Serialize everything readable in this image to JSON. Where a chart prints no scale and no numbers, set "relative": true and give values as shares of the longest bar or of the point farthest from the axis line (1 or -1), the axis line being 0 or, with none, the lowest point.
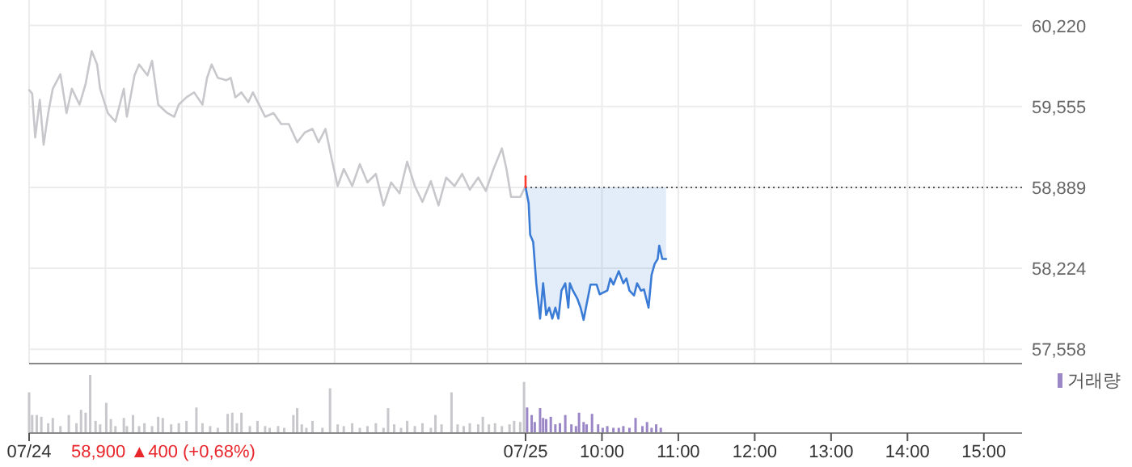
{
  "chart_data": [
    {
      "type": "line",
      "tick_labels": "y",
      "grid": true,
      "xlim": [
        2.5,
        15.5
      ],
      "xticks": [
        2.5,
        3.5,
        4.5,
        5.5,
        6.5,
        7.5,
        8.5,
        9,
        10,
        11,
        12,
        13,
        14,
        15
      ],
      "ylim": [
        57440,
        60430
      ],
      "yticks": [
        {
          "value": 57558,
          "label": "57,558"
        },
        {
          "value": 58224,
          "label": "58,224"
        },
        {
          "value": 58889,
          "label": "58,889"
        },
        {
          "value": 59555,
          "label": "59,555"
        },
        {
          "value": 60220,
          "label": "60,220"
        }
      ],
      "ref_lines": [
        {
          "axis": "y",
          "value": 58889,
          "color": "#555555",
          "line_style": "dotted"
        }
      ],
      "series": [
        {
          "color": "#c8c8cc",
          "x": [
            2.5,
            2.54,
            2.58,
            2.64,
            2.69,
            2.75,
            2.81,
            2.91,
            2.99,
            3.06,
            3.16,
            3.24,
            3.32,
            3.39,
            3.43,
            3.53,
            3.63,
            3.74,
            3.78,
            3.88,
            3.94,
            4.05,
            4.11,
            4.19,
            4.31,
            4.4,
            4.46,
            4.56,
            4.66,
            4.77,
            4.83,
            4.89,
            4.97,
            5.08,
            5.14,
            5.2,
            5.28,
            5.37,
            5.43,
            5.51,
            5.59,
            5.7,
            5.8,
            5.9,
            6.01,
            6.11,
            6.21,
            6.29,
            6.38,
            6.46,
            6.54,
            6.62,
            6.73,
            6.83,
            6.93,
            7.04,
            7.14,
            7.24,
            7.35,
            7.45,
            7.55,
            7.65,
            7.76,
            7.86,
            7.96,
            8.07,
            8.17,
            8.27,
            8.38,
            8.48,
            8.58,
            8.69,
            8.75,
            8.81,
            8.93,
            9.0
          ],
          "values": [
            59690,
            59660,
            59300,
            59610,
            59240,
            59500,
            59700,
            59820,
            59500,
            59700,
            59570,
            59740,
            60010,
            59900,
            59700,
            59500,
            59430,
            59700,
            59470,
            59810,
            59900,
            59810,
            59930,
            59570,
            59500,
            59470,
            59570,
            59630,
            59670,
            59570,
            59790,
            59900,
            59790,
            59770,
            59790,
            59630,
            59670,
            59590,
            59670,
            59570,
            59470,
            59500,
            59410,
            59410,
            59260,
            59340,
            59370,
            59260,
            59370,
            59130,
            58900,
            59040,
            58900,
            59080,
            58930,
            59000,
            58740,
            58930,
            58840,
            59100,
            58900,
            58770,
            58940,
            58740,
            58970,
            58900,
            59000,
            58870,
            58970,
            58860,
            59040,
            59210,
            59040,
            58810,
            58810,
            58900
          ]
        },
        {
          "color": "#3a7bd5",
          "upper": [
            58889,
            58889,
            58889,
            58889,
            58889,
            58889,
            58889,
            58889,
            58889,
            58889,
            58889,
            58889,
            58889,
            58889,
            58889,
            58889,
            58889,
            58889,
            58889,
            58889,
            58889,
            58889,
            58889,
            58889,
            58889,
            58889,
            58889,
            58889,
            58889,
            58889,
            58889,
            58889,
            58889,
            58889,
            58889,
            58889,
            58889,
            58889,
            58889,
            58889,
            58889,
            58889
          ],
          "lower": [
            58890,
            58760,
            58500,
            58440,
            58100,
            57810,
            58100,
            57840,
            57900,
            57810,
            57900,
            57810,
            58040,
            58100,
            57900,
            58100,
            58040,
            57970,
            57900,
            57800,
            57930,
            58090,
            58090,
            58010,
            58040,
            58140,
            58090,
            58200,
            58100,
            58140,
            58040,
            58000,
            58100,
            58040,
            58050,
            57900,
            58170,
            58260,
            58300,
            58410,
            58300,
            58300
          ],
          "x": [
            9,
            9.04,
            9.06,
            9.1,
            9.14,
            9.19,
            9.23,
            9.27,
            9.31,
            9.35,
            9.39,
            9.43,
            9.47,
            9.52,
            9.56,
            9.58,
            9.62,
            9.68,
            9.72,
            9.76,
            9.8,
            9.85,
            9.93,
            9.97,
            10.07,
            10.11,
            10.15,
            10.22,
            10.28,
            10.32,
            10.36,
            10.42,
            10.46,
            10.51,
            10.55,
            10.61,
            10.65,
            10.69,
            10.73,
            10.75,
            10.79,
            10.84
          ],
          "values": [
            58890,
            58760,
            58500,
            58440,
            58100,
            57810,
            58100,
            57840,
            57900,
            57810,
            57900,
            57810,
            58040,
            58100,
            57900,
            58100,
            58040,
            57970,
            57900,
            57800,
            57930,
            58090,
            58090,
            58010,
            58040,
            58140,
            58090,
            58200,
            58100,
            58140,
            58040,
            58000,
            58100,
            58040,
            58050,
            57900,
            58170,
            58260,
            58300,
            58410,
            58300,
            58300
          ]
        },
        {
          "color": "#ff3b30",
          "x": [
            9,
            9
          ],
          "values": [
            58890,
            58980
          ]
        }
      ]
    },
    {
      "type": "bar",
      "relative": true,
      "tick_labels": "x",
      "legend": "top right",
      "xlim": [
        2.5,
        15.5
      ],
      "xticks": [
        {
          "value": 2.5,
          "label": "07/24"
        },
        {
          "value": 9,
          "label": "07/25"
        },
        {
          "value": 10,
          "label": "10:00"
        },
        {
          "value": 11,
          "label": "11:00"
        },
        {
          "value": 12,
          "label": "12:00"
        },
        {
          "value": 13,
          "label": "13:00"
        },
        {
          "value": 14,
          "label": "14:00"
        },
        {
          "value": 15,
          "label": "15:00"
        }
      ],
      "annotations": [
        "58,900 ▲400 (+0,68%)"
      ],
      "series": [
        {
          "color": "#c8c8cc",
          "x": [
            2.5,
            2.54,
            2.6,
            2.66,
            2.75,
            2.81,
            2.91,
            3.02,
            3.12,
            3.18,
            3.24,
            3.3,
            3.37,
            3.43,
            3.51,
            3.57,
            3.63,
            3.74,
            3.78,
            3.86,
            3.94,
            4.01,
            4.11,
            4.19,
            4.25,
            4.36,
            4.46,
            4.56,
            4.69,
            4.77,
            4.87,
            4.97,
            5.1,
            5.16,
            5.22,
            5.28,
            5.39,
            5.49,
            5.59,
            5.65,
            5.76,
            5.84,
            5.96,
            6.01,
            6.07,
            6.13,
            6.21,
            6.34,
            6.44,
            6.54,
            6.62,
            6.73,
            6.83,
            6.93,
            7.04,
            7.14,
            7.2,
            7.28,
            7.37,
            7.45,
            7.55,
            7.65,
            7.76,
            7.82,
            7.9,
            8.03,
            8.11,
            8.19,
            8.27,
            8.38,
            8.44,
            8.52,
            8.6,
            8.69,
            8.79,
            8.85,
            8.93,
            8.98
          ],
          "values": [
            0.7,
            0.31,
            0.31,
            0.28,
            0.17,
            0.26,
            0.12,
            0.31,
            0.17,
            0.4,
            0.35,
            1.0,
            0.21,
            0.15,
            0.52,
            0.24,
            0.12,
            0.26,
            0.12,
            0.31,
            0.12,
            0.17,
            0.12,
            0.28,
            0.26,
            0.15,
            0.17,
            0.21,
            0.44,
            0.17,
            0.12,
            0.09,
            0.33,
            0.35,
            0.17,
            0.35,
            0.12,
            0.21,
            0.12,
            0.09,
            0.12,
            0.09,
            0.31,
            0.43,
            0.15,
            0.09,
            0.21,
            0.09,
            0.77,
            0.15,
            0.12,
            0.17,
            0.09,
            0.12,
            0.17,
            0.09,
            0.43,
            0.15,
            0.09,
            0.21,
            0.12,
            0.17,
            0.09,
            0.31,
            0.15,
            0.7,
            0.15,
            0.12,
            0.17,
            0.15,
            0.28,
            0.15,
            0.17,
            0.12,
            0.15,
            0.21,
            0.19,
            0.88
          ]
        },
        {
          "name": "거래량",
          "color": "#9b86c6",
          "x": [
            9.02,
            9.08,
            9.12,
            9.19,
            9.23,
            9.27,
            9.33,
            9.39,
            9.45,
            9.52,
            9.6,
            9.66,
            9.7,
            9.76,
            9.8,
            9.87,
            9.95,
            10.01,
            10.07,
            10.15,
            10.22,
            10.28,
            10.36,
            10.44,
            10.53,
            10.59,
            10.65,
            10.71,
            10.77
          ],
          "values": [
            0.44,
            0.31,
            0.19,
            0.43,
            0.26,
            0.24,
            0.28,
            0.15,
            0.17,
            0.31,
            0.15,
            0.12,
            0.35,
            0.19,
            0.15,
            0.33,
            0.15,
            0.09,
            0.12,
            0.09,
            0.09,
            0.12,
            0.09,
            0.26,
            0.12,
            0.19,
            0.09,
            0.15,
            0.09
          ]
        }
      ]
    }
  ]
}
